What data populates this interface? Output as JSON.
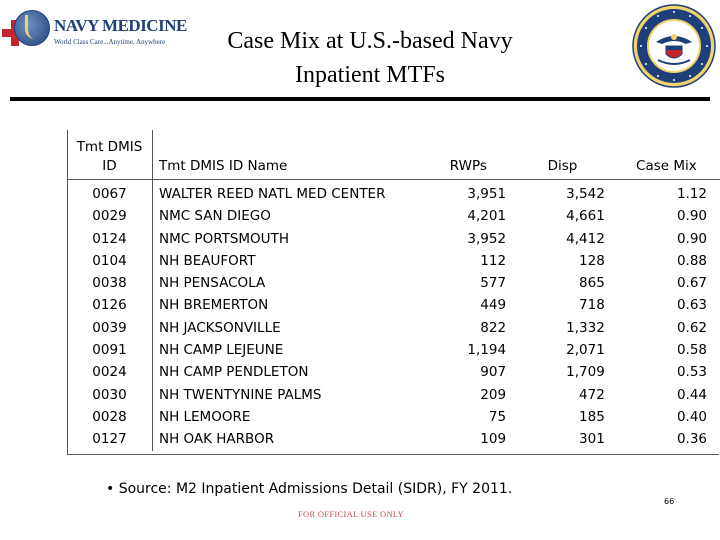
{
  "header": {
    "logo_text": "NAVY MEDICINE",
    "logo_tagline": "World Class Care...Anytime, Anywhere",
    "title_line1": "Case Mix at U.S.-based Navy",
    "title_line2": "Inpatient MTFs"
  },
  "table": {
    "headers": {
      "id_line1": "Tmt DMIS",
      "id_line2": "ID",
      "name": "Tmt DMIS ID Name",
      "rwps": "RWPs",
      "disp": "Disp",
      "case_mix": "Case Mix"
    },
    "rows": [
      {
        "id": "0067",
        "name": "WALTER REED NATL MED CENTER",
        "rwps": "3,951",
        "disp": "3,542",
        "case_mix": "1.12"
      },
      {
        "id": "0029",
        "name": "NMC SAN DIEGO",
        "rwps": "4,201",
        "disp": "4,661",
        "case_mix": "0.90"
      },
      {
        "id": "0124",
        "name": "NMC PORTSMOUTH",
        "rwps": "3,952",
        "disp": "4,412",
        "case_mix": "0.90"
      },
      {
        "id": "0104",
        "name": "NH BEAUFORT",
        "rwps": "112",
        "disp": "128",
        "case_mix": "0.88"
      },
      {
        "id": "0038",
        "name": "NH PENSACOLA",
        "rwps": "577",
        "disp": "865",
        "case_mix": "0.67"
      },
      {
        "id": "0126",
        "name": "NH BREMERTON",
        "rwps": "449",
        "disp": "718",
        "case_mix": "0.63"
      },
      {
        "id": "0039",
        "name": "NH JACKSONVILLE",
        "rwps": "822",
        "disp": "1,332",
        "case_mix": "0.62"
      },
      {
        "id": "0091",
        "name": "NH CAMP LEJEUNE",
        "rwps": "1,194",
        "disp": "2,071",
        "case_mix": "0.58"
      },
      {
        "id": "0024",
        "name": "NH CAMP PENDLETON",
        "rwps": "907",
        "disp": "1,709",
        "case_mix": "0.53"
      },
      {
        "id": "0030",
        "name": "NH TWENTYNINE PALMS",
        "rwps": "209",
        "disp": "472",
        "case_mix": "0.44"
      },
      {
        "id": "0028",
        "name": "NH LEMOORE",
        "rwps": "75",
        "disp": "185",
        "case_mix": "0.40"
      },
      {
        "id": "0127",
        "name": "NH OAK HARBOR",
        "rwps": "109",
        "disp": "301",
        "case_mix": "0.36"
      }
    ]
  },
  "source_note": "• Source:  M2 Inpatient Admissions Detail (SIDR), FY 2011.",
  "footer_text": "FOR OFFICIAL USE ONLY",
  "page_number": "66",
  "colors": {
    "navy_blue": "#1f3f7a",
    "red": "#c4262e",
    "footer_red": "#c0504d",
    "gold": "#f0d36a"
  },
  "icons": {
    "left_logo": "navy-medicine-logo",
    "right_seal": "department-of-the-navy-seal"
  }
}
